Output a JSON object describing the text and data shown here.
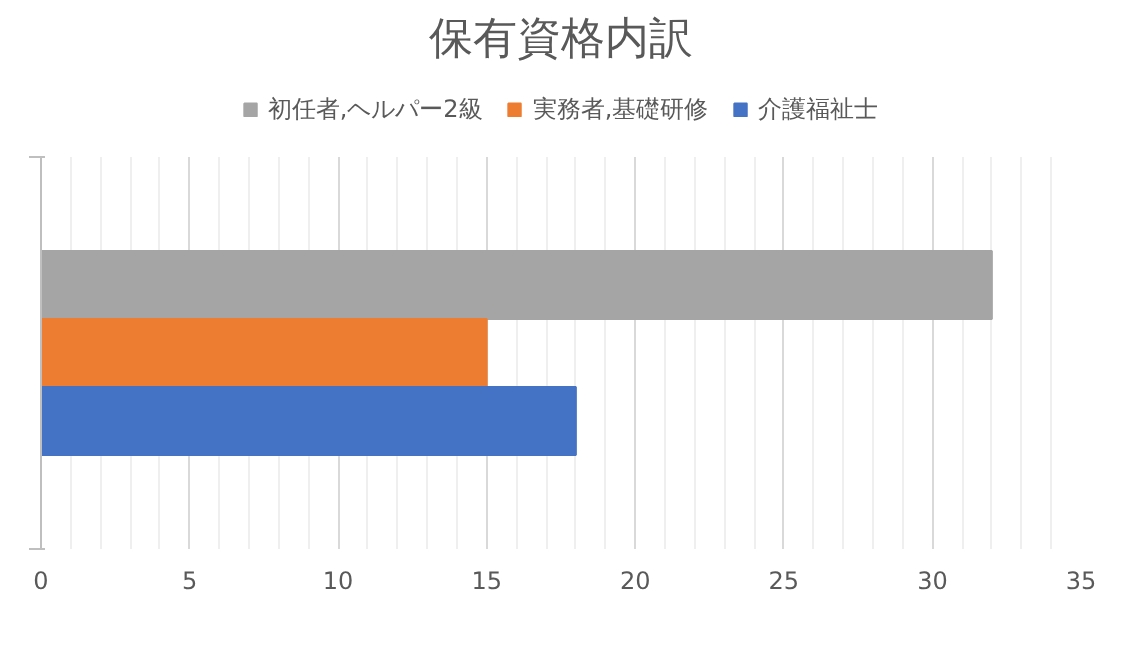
{
  "chart_data": {
    "type": "bar",
    "orientation": "horizontal",
    "title": "保有資格内訳",
    "categories": [
      null
    ],
    "series": [
      {
        "name": "初任者,ヘルパー2級",
        "color": "#a5a5a5",
        "values": [
          32
        ]
      },
      {
        "name": "実務者,基礎研修",
        "color": "#ed7d31",
        "values": [
          15
        ]
      },
      {
        "name": "介護福祉士",
        "color": "#4472c4",
        "values": [
          18
        ]
      }
    ],
    "xlim": [
      0,
      35
    ],
    "xticks": [
      0,
      5,
      10,
      15,
      20,
      25,
      30,
      35
    ],
    "grid": "x",
    "legend": "top",
    "tick_labels": "x"
  }
}
